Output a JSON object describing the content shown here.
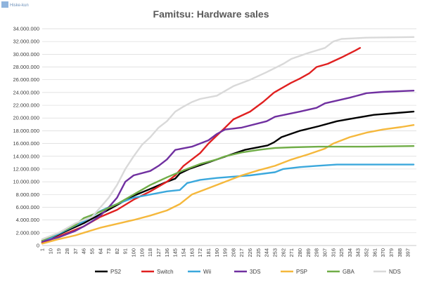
{
  "watermark": "Hiske-kun",
  "chart_data": {
    "type": "line",
    "title": "Famitsu: Hardware sales",
    "xlabel": "",
    "ylabel": "",
    "xlim": [
      1,
      406
    ],
    "ylim": [
      0,
      34000000
    ],
    "grid": true,
    "legend_position": "bottom",
    "y_ticks": [
      "0",
      "2.000.000",
      "4.000.000",
      "6.000.000",
      "8.000.000",
      "10.000.000",
      "12.000.000",
      "14.000.000",
      "16.000.000",
      "18.000.000",
      "20.000.000",
      "22.000.000",
      "24.000.000",
      "26.000.000",
      "28.000.000",
      "30.000.000",
      "32.000.000",
      "34.000.000"
    ],
    "x_ticks": [
      1,
      10,
      19,
      28,
      37,
      46,
      55,
      64,
      73,
      82,
      91,
      100,
      109,
      118,
      127,
      136,
      145,
      154,
      163,
      172,
      181,
      190,
      199,
      208,
      217,
      226,
      235,
      244,
      253,
      262,
      271,
      280,
      289,
      298,
      307,
      316,
      325,
      334,
      343,
      352,
      361,
      370,
      379,
      388,
      397
    ],
    "series": [
      {
        "name": "PS2",
        "color": "#000000",
        "points": [
          [
            1,
            500000
          ],
          [
            20,
            1800000
          ],
          [
            46,
            3500000
          ],
          [
            60,
            4600000
          ],
          [
            80,
            6200000
          ],
          [
            100,
            7800000
          ],
          [
            120,
            9000000
          ],
          [
            136,
            10000000
          ],
          [
            145,
            10500000
          ],
          [
            150,
            11300000
          ],
          [
            160,
            12000000
          ],
          [
            180,
            13000000
          ],
          [
            200,
            14000000
          ],
          [
            210,
            14500000
          ],
          [
            220,
            15000000
          ],
          [
            245,
            15700000
          ],
          [
            252,
            16200000
          ],
          [
            260,
            17000000
          ],
          [
            280,
            18000000
          ],
          [
            300,
            18700000
          ],
          [
            320,
            19500000
          ],
          [
            340,
            20000000
          ],
          [
            360,
            20500000
          ],
          [
            385,
            20800000
          ],
          [
            403,
            21000000
          ]
        ]
      },
      {
        "name": "Switch",
        "color": "#e02020",
        "points": [
          [
            1,
            400000
          ],
          [
            20,
            1500000
          ],
          [
            46,
            3000000
          ],
          [
            64,
            4500000
          ],
          [
            82,
            5600000
          ],
          [
            100,
            7200000
          ],
          [
            118,
            8500000
          ],
          [
            136,
            10000000
          ],
          [
            145,
            11000000
          ],
          [
            154,
            12500000
          ],
          [
            172,
            14500000
          ],
          [
            181,
            16000000
          ],
          [
            199,
            18500000
          ],
          [
            208,
            19800000
          ],
          [
            226,
            21000000
          ],
          [
            240,
            22500000
          ],
          [
            252,
            24000000
          ],
          [
            270,
            25500000
          ],
          [
            280,
            26200000
          ],
          [
            290,
            27000000
          ],
          [
            298,
            28000000
          ],
          [
            310,
            28500000
          ],
          [
            325,
            29500000
          ],
          [
            340,
            30600000
          ],
          [
            345,
            31000000
          ]
        ]
      },
      {
        "name": "Wii",
        "color": "#3ba8dc",
        "points": [
          [
            1,
            700000
          ],
          [
            10,
            1200000
          ],
          [
            28,
            2500000
          ],
          [
            46,
            3800000
          ],
          [
            55,
            4600000
          ],
          [
            64,
            5400000
          ],
          [
            73,
            6000000
          ],
          [
            82,
            6500000
          ],
          [
            91,
            7000000
          ],
          [
            100,
            7500000
          ],
          [
            118,
            8000000
          ],
          [
            136,
            8500000
          ],
          [
            150,
            8700000
          ],
          [
            158,
            9800000
          ],
          [
            172,
            10300000
          ],
          [
            190,
            10600000
          ],
          [
            208,
            10800000
          ],
          [
            226,
            11000000
          ],
          [
            253,
            11500000
          ],
          [
            262,
            12000000
          ],
          [
            280,
            12300000
          ],
          [
            298,
            12500000
          ],
          [
            320,
            12700000
          ],
          [
            360,
            12700000
          ],
          [
            403,
            12700000
          ]
        ]
      },
      {
        "name": "3DS",
        "color": "#7030a0",
        "points": [
          [
            1,
            600000
          ],
          [
            19,
            1300000
          ],
          [
            37,
            2300000
          ],
          [
            46,
            3000000
          ],
          [
            55,
            3800000
          ],
          [
            64,
            4700000
          ],
          [
            73,
            6000000
          ],
          [
            82,
            7500000
          ],
          [
            91,
            10000000
          ],
          [
            100,
            11000000
          ],
          [
            118,
            11700000
          ],
          [
            127,
            12500000
          ],
          [
            136,
            13500000
          ],
          [
            145,
            15000000
          ],
          [
            163,
            15500000
          ],
          [
            181,
            16500000
          ],
          [
            190,
            17500000
          ],
          [
            199,
            18200000
          ],
          [
            217,
            18500000
          ],
          [
            244,
            19500000
          ],
          [
            253,
            20200000
          ],
          [
            280,
            21000000
          ],
          [
            298,
            21600000
          ],
          [
            307,
            22300000
          ],
          [
            334,
            23200000
          ],
          [
            352,
            23900000
          ],
          [
            370,
            24100000
          ],
          [
            403,
            24300000
          ]
        ]
      },
      {
        "name": "PSP",
        "color": "#f5b83c",
        "points": [
          [
            1,
            300000
          ],
          [
            19,
            1000000
          ],
          [
            37,
            1600000
          ],
          [
            46,
            2000000
          ],
          [
            64,
            2800000
          ],
          [
            82,
            3400000
          ],
          [
            100,
            4000000
          ],
          [
            118,
            4700000
          ],
          [
            136,
            5500000
          ],
          [
            150,
            6500000
          ],
          [
            163,
            8000000
          ],
          [
            181,
            9000000
          ],
          [
            199,
            10000000
          ],
          [
            217,
            11000000
          ],
          [
            235,
            11800000
          ],
          [
            253,
            12500000
          ],
          [
            271,
            13500000
          ],
          [
            289,
            14300000
          ],
          [
            307,
            15200000
          ],
          [
            316,
            16000000
          ],
          [
            334,
            17000000
          ],
          [
            352,
            17700000
          ],
          [
            370,
            18200000
          ],
          [
            390,
            18600000
          ],
          [
            403,
            18900000
          ]
        ]
      },
      {
        "name": "GBA",
        "color": "#70ad47",
        "points": [
          [
            1,
            800000
          ],
          [
            19,
            2000000
          ],
          [
            37,
            3200000
          ],
          [
            46,
            4300000
          ],
          [
            64,
            5300000
          ],
          [
            82,
            6500000
          ],
          [
            100,
            8000000
          ],
          [
            118,
            9500000
          ],
          [
            136,
            10700000
          ],
          [
            154,
            11800000
          ],
          [
            172,
            12800000
          ],
          [
            190,
            13500000
          ],
          [
            199,
            14000000
          ],
          [
            217,
            14600000
          ],
          [
            235,
            15000000
          ],
          [
            253,
            15300000
          ],
          [
            271,
            15400000
          ],
          [
            300,
            15500000
          ],
          [
            350,
            15500000
          ],
          [
            403,
            15600000
          ]
        ]
      },
      {
        "name": "NDS",
        "color": "#d9d9d9",
        "points": [
          [
            1,
            1000000
          ],
          [
            19,
            2000000
          ],
          [
            37,
            3500000
          ],
          [
            55,
            4500000
          ],
          [
            64,
            6000000
          ],
          [
            73,
            7500000
          ],
          [
            82,
            9500000
          ],
          [
            91,
            12000000
          ],
          [
            100,
            14000000
          ],
          [
            109,
            15800000
          ],
          [
            118,
            17000000
          ],
          [
            127,
            18500000
          ],
          [
            136,
            19500000
          ],
          [
            145,
            21000000
          ],
          [
            154,
            21800000
          ],
          [
            163,
            22500000
          ],
          [
            172,
            23000000
          ],
          [
            190,
            23500000
          ],
          [
            208,
            25000000
          ],
          [
            226,
            26000000
          ],
          [
            244,
            27200000
          ],
          [
            262,
            28500000
          ],
          [
            271,
            29300000
          ],
          [
            289,
            30200000
          ],
          [
            307,
            31000000
          ],
          [
            316,
            32000000
          ],
          [
            325,
            32400000
          ],
          [
            352,
            32600000
          ],
          [
            403,
            32700000
          ]
        ]
      }
    ]
  }
}
